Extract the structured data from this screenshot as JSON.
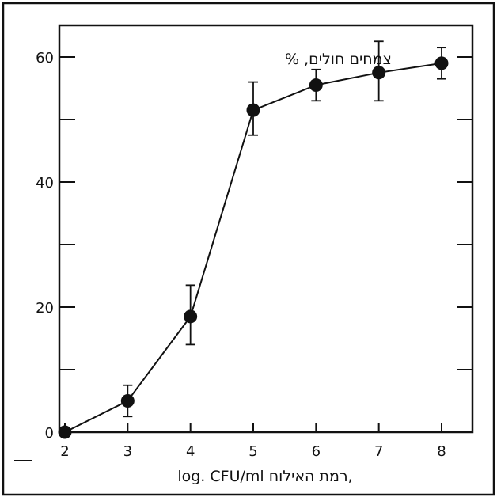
{
  "chart_data": {
    "type": "line",
    "ylabel": "צמחים חולים, %",
    "xlabel": "log. CFU/ml רמת האילוח,",
    "x": [
      2,
      3,
      4,
      5,
      6,
      7,
      8
    ],
    "xlim": [
      2,
      8
    ],
    "ylim": [
      0,
      60
    ],
    "xticks": [
      2,
      3,
      4,
      5,
      6,
      7,
      8
    ],
    "yticks_labeled": [
      0,
      20,
      40,
      60
    ],
    "series": [
      {
        "values": [
          0,
          5,
          18.5,
          51.5,
          55.5,
          57.5,
          59
        ],
        "err_low": [
          0,
          2.5,
          4.5,
          4,
          2.5,
          4.5,
          2.5
        ],
        "err_high": [
          0,
          2.5,
          5,
          4.5,
          2.5,
          5,
          2.5
        ]
      }
    ],
    "grid": false,
    "legend": "none",
    "color": "#111111"
  }
}
